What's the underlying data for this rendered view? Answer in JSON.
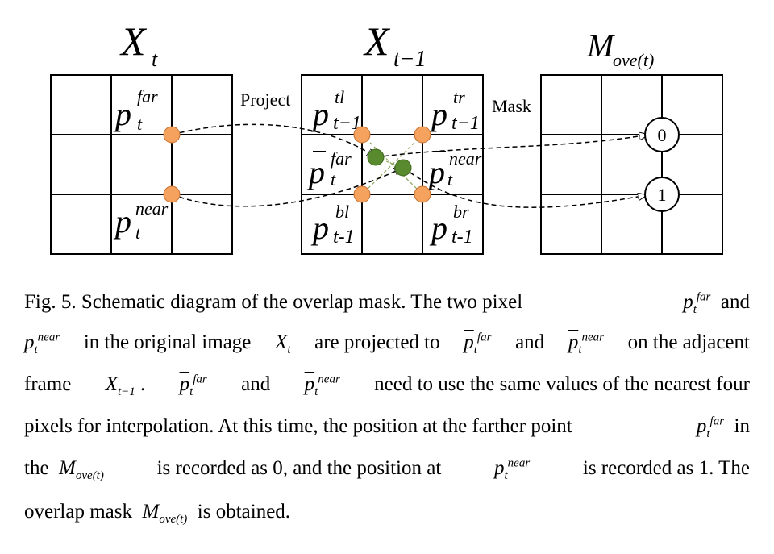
{
  "panels": {
    "left": {
      "title": "X",
      "title_sub": "t"
    },
    "middle": {
      "title": "X",
      "title_sub": "t−1"
    },
    "right": {
      "title": "M",
      "title_sub": "ove(t)"
    }
  },
  "labels": {
    "project": "Project",
    "mask": "Mask",
    "p": "p",
    "pbar": "p̄",
    "far": "far",
    "near": "near",
    "t": "t",
    "tl": "tl",
    "tr": "tr",
    "bl": "bl",
    "br": "br",
    "tm1": "t−1",
    "tm1b": "t-1",
    "mask_far": "0",
    "mask_near": "1"
  },
  "colors": {
    "orange": "#f4a25e",
    "green": "#5a8a2e",
    "line": "#000000"
  },
  "caption": {
    "l1_a": "Fig. 5. Schematic diagram of the overlap mask. The two pixel",
    "l1_b": "and",
    "l2_a": "in the original image",
    "l2_b": "are projected to",
    "l2_c": "and",
    "l2_d": "on the adjacent",
    "l3_a": "frame",
    "l3_b": ".",
    "l3_c": "and",
    "l3_d": "need to use the same values of the nearest four",
    "l4": "pixels for interpolation. At this time, the position at the farther point",
    "l4_b": "in",
    "l5_a": "the",
    "l5_b": "is recorded as 0,  and the position at",
    "l5_c": "is recorded as 1. The",
    "l6_a": "overlap mask",
    "l6_b": "is obtained."
  }
}
